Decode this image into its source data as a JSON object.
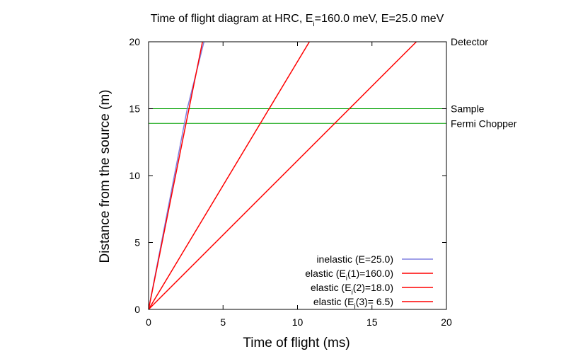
{
  "chart_data": {
    "type": "line",
    "title": "Time of flight diagram at HRC, E",
    "title_sub": "i",
    "title_rest": "=160.0 meV, E=25.0 meV",
    "xlabel": "Time of flight (ms)",
    "ylabel": "Distance from the source (m)",
    "xlim": [
      0,
      20
    ],
    "ylim": [
      0,
      20
    ],
    "xticks": [
      0,
      5,
      10,
      15,
      20
    ],
    "yticks": [
      0,
      5,
      10,
      15,
      20
    ],
    "grid": false,
    "legend_position": "bottom-right",
    "hlines": [
      {
        "y": 15.0,
        "label": "Sample",
        "color": "#00a000"
      },
      {
        "y": 13.9,
        "label": "Fermi Chopper",
        "color": "#00a000"
      }
    ],
    "right_labels": [
      {
        "y": 20,
        "label": "Detector"
      }
    ],
    "series": [
      {
        "name": "inelastic (E=25.0)",
        "legend_pre": "inelastic (E=25.0)",
        "legend_sub": "",
        "legend_post": "",
        "color": "#8080e0",
        "x": [
          0,
          2.6,
          3.72
        ],
        "y": [
          0,
          15.0,
          20
        ]
      },
      {
        "name": "elastic (Ei(1)=160.0)",
        "legend_pre": "elastic (E",
        "legend_sub": "i",
        "legend_post": "(1)=160.0)",
        "color": "#ff0000",
        "x": [
          0,
          3.62
        ],
        "y": [
          0,
          20
        ]
      },
      {
        "name": "elastic (Ei(2)=18.0)",
        "legend_pre": "elastic (E",
        "legend_sub": "i",
        "legend_post": "(2)=18.0)",
        "color": "#ff0000",
        "x": [
          0,
          10.8
        ],
        "y": [
          0,
          20
        ]
      },
      {
        "name": "elastic (Ei(3)= 6.5)",
        "legend_pre": "elastic (E",
        "legend_sub": "i",
        "legend_post": "(3)= 6.5)",
        "color": "#ff0000",
        "x": [
          0,
          17.98
        ],
        "y": [
          0,
          20
        ]
      }
    ]
  }
}
